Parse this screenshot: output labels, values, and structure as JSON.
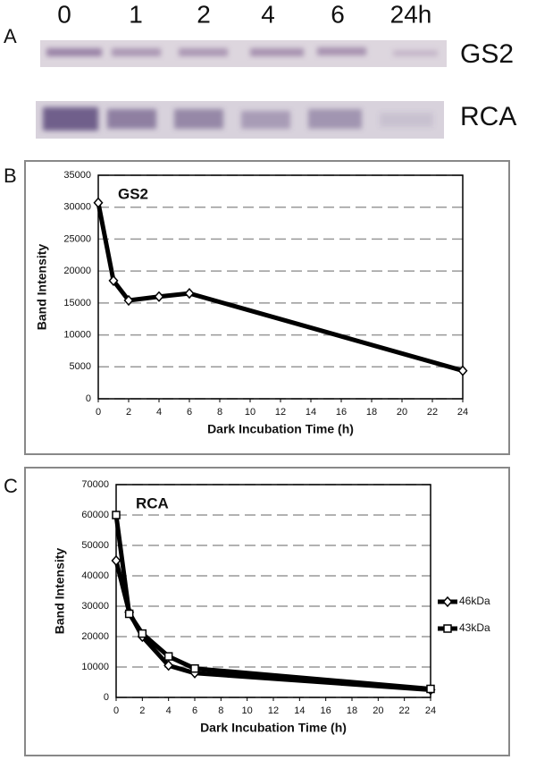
{
  "panels": [
    "A",
    "B",
    "C"
  ],
  "blot": {
    "lanes": [
      "0",
      "1",
      "2",
      "4",
      "6",
      "24h"
    ],
    "rows": [
      "GS2",
      "RCA"
    ]
  },
  "chart_data": [
    {
      "type": "line",
      "title": "GS2",
      "x_label": "Dark Incubation Time (h)",
      "y_label": "Band Intensity",
      "x": [
        0,
        1,
        2,
        4,
        6,
        24
      ],
      "values": [
        30700,
        18500,
        15400,
        16000,
        16500,
        4400
      ],
      "color": "#000000",
      "marker": "diamond",
      "xlim": [
        0,
        24
      ],
      "xticks": [
        0,
        2,
        4,
        6,
        8,
        10,
        12,
        14,
        16,
        18,
        20,
        22,
        24
      ],
      "ylim": [
        0,
        35000
      ],
      "yticks": [
        0,
        5000,
        10000,
        15000,
        20000,
        25000,
        30000,
        35000
      ],
      "grid": true
    },
    {
      "type": "line",
      "title": "RCA",
      "x_label": "Dark Incubation Time (h)",
      "y_label": "Band Intensity",
      "x": [
        0,
        1,
        2,
        4,
        6,
        24
      ],
      "series": [
        {
          "name": "46kDa",
          "color": "#000000",
          "marker": "diamond",
          "values": [
            45000,
            28000,
            20000,
            10500,
            8000,
            2500
          ]
        },
        {
          "name": "43kDa",
          "color": "#000000",
          "marker": "square",
          "values": [
            60000,
            27500,
            21000,
            13500,
            9500,
            2800
          ]
        }
      ],
      "xlim": [
        0,
        24
      ],
      "xticks": [
        0,
        2,
        4,
        6,
        8,
        10,
        12,
        14,
        16,
        18,
        20,
        22,
        24
      ],
      "ylim": [
        0,
        70000
      ],
      "yticks": [
        0,
        10000,
        20000,
        30000,
        40000,
        50000,
        60000,
        70000
      ],
      "grid": true,
      "legend": "right"
    }
  ]
}
